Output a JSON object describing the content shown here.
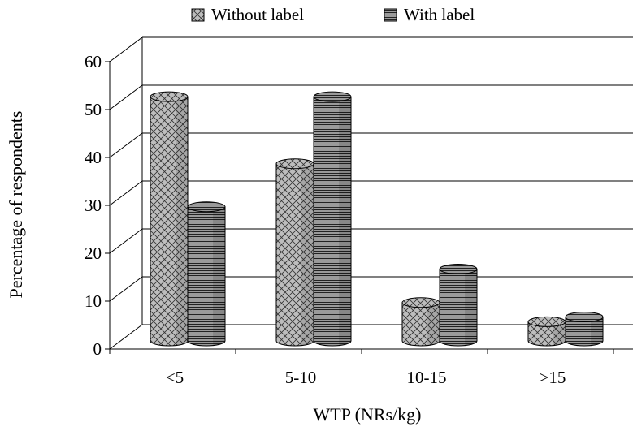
{
  "chart_data": {
    "type": "bar",
    "title": "",
    "xlabel": "WTP (NRs/kg)",
    "ylabel": "Percentage of respondents",
    "categories": [
      "<5",
      "5-10",
      "10-15",
      ">15"
    ],
    "series": [
      {
        "name": "Without label",
        "values": [
          51,
          37,
          8,
          4
        ]
      },
      {
        "name": "With label",
        "values": [
          28,
          51,
          15,
          5
        ]
      }
    ],
    "ylim": [
      0,
      60
    ],
    "yticks": [
      "0",
      "10",
      "20",
      "30",
      "40",
      "50",
      "60"
    ],
    "grid": true,
    "legend_position": "top",
    "style": "3d-cylinder",
    "colors": {
      "series_fill": "#b8b8b8",
      "without_label_pattern": "crosshatch",
      "with_label_pattern": "horizontal-lines"
    }
  }
}
